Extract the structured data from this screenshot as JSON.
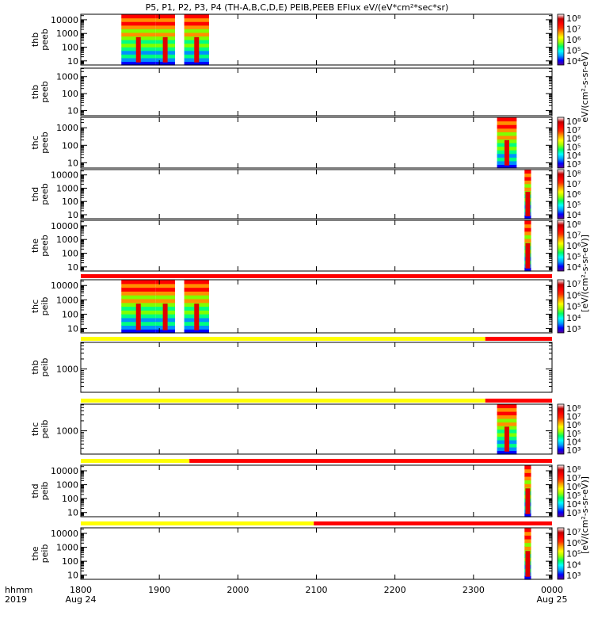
{
  "title": "P5, P1, P2, P3, P4 (TH-A,B,C,D,E) PEIB,PEEB EFlux eV/(eV*cm²*sec*sr)",
  "footer": {
    "row1_left": "hhmm",
    "row2_left": "2019"
  },
  "time_axis": {
    "ticks": [
      {
        "label": "1800",
        "sub": "Aug 24",
        "t": 0
      },
      {
        "label": "1900",
        "sub": "",
        "t": 60
      },
      {
        "label": "2000",
        "sub": "",
        "t": 120
      },
      {
        "label": "2100",
        "sub": "",
        "t": 180
      },
      {
        "label": "2200",
        "sub": "",
        "t": 240
      },
      {
        "label": "2300",
        "sub": "",
        "t": 300
      },
      {
        "label": "0000",
        "sub": "Aug 25",
        "t": 360
      }
    ],
    "range_minutes": [
      0,
      360
    ]
  },
  "colorbar_unit_labels": [
    "eV/(cm²-s-sr-eV)",
    "[eV/(cm²-s-sr-eV)]",
    "[eV/(cm²-s-sr-eV)]"
  ],
  "chart_data": {
    "type": "heatmap",
    "panels": [
      {
        "id": "thc-peeb-a",
        "ylabel": [
          "thb",
          "peeb"
        ],
        "yticks": [
          "10000",
          "1000",
          "100",
          "10"
        ],
        "ylog": [
          0.7,
          4.4
        ],
        "cb": [
          "10⁸",
          "10⁷",
          "10⁶",
          "10⁵",
          "10⁴"
        ],
        "blocks": [
          [
            31,
            57
          ],
          [
            57,
            72
          ],
          [
            79,
            98
          ]
        ],
        "bar": null
      },
      {
        "id": "thb-peeb",
        "ylabel": [
          "thb",
          "peeb"
        ],
        "yticks": [
          "1000",
          "100",
          "10"
        ],
        "ylog": [
          0.7,
          3.5
        ],
        "cb": [],
        "blocks": [],
        "bar": null
      },
      {
        "id": "thc-peeb",
        "ylabel": [
          "thc",
          "peeb"
        ],
        "yticks": [
          "1000",
          "100",
          "10"
        ],
        "ylog": [
          0.7,
          3.6
        ],
        "cb": [
          "10⁸",
          "10⁷",
          "10⁶",
          "10⁵",
          "10⁴",
          "10³"
        ],
        "blocks": [
          [
            318,
            333
          ]
        ],
        "bar": null
      },
      {
        "id": "thd-peeb",
        "ylabel": [
          "thd",
          "peeb"
        ],
        "yticks": [
          "10000",
          "1000",
          "100",
          "10"
        ],
        "ylog": [
          0.7,
          4.4
        ],
        "cb": [
          "10⁸",
          "10⁷",
          "10⁶",
          "10⁵",
          "10⁴"
        ],
        "blocks": [
          [
            339,
            344
          ]
        ],
        "bar": null
      },
      {
        "id": "the-peeb",
        "ylabel": [
          "the",
          "peeb"
        ],
        "yticks": [
          "10000",
          "1000",
          "100",
          "10"
        ],
        "ylog": [
          0.7,
          4.4
        ],
        "cb": [
          "10⁸",
          "10⁷",
          "10⁶",
          "10⁵",
          "10⁴"
        ],
        "blocks": [
          [
            339,
            344
          ]
        ],
        "bar": {
          "yellow_until": null
        }
      },
      {
        "id": "thc-peib-a",
        "ylabel": [
          "thc",
          "peib"
        ],
        "yticks": [
          "10000",
          "1000",
          "100",
          "10"
        ],
        "ylog": [
          0.7,
          4.4
        ],
        "cb": [
          "10⁷",
          "10⁶",
          "10⁵",
          "10⁴",
          "10³"
        ],
        "blocks": [
          [
            31,
            57
          ],
          [
            57,
            72
          ],
          [
            79,
            98
          ]
        ],
        "bar": {
          "yellow_until": 309
        }
      },
      {
        "id": "thb-peib",
        "ylabel": [
          "thb",
          "peib"
        ],
        "yticks": [
          "1000"
        ],
        "ylog": [
          2.3,
          3.8
        ],
        "cb": [],
        "blocks": [],
        "bar": {
          "yellow_until": 309
        }
      },
      {
        "id": "thc-peib",
        "ylabel": [
          "thc",
          "peib"
        ],
        "yticks": [
          "1000"
        ],
        "ylog": [
          2.3,
          3.8
        ],
        "cb": [
          "10⁸",
          "10⁷",
          "10⁶",
          "10⁵",
          "10⁴",
          "10³"
        ],
        "blocks": [
          [
            318,
            333
          ]
        ],
        "bar": {
          "yellow_until": 83
        }
      },
      {
        "id": "thd-peib",
        "ylabel": [
          "thd",
          "peib"
        ],
        "yticks": [
          "10000",
          "1000",
          "100",
          "10"
        ],
        "ylog": [
          0.7,
          4.4
        ],
        "cb": [
          "10⁸",
          "10⁷",
          "10⁶",
          "10⁵",
          "10⁴",
          "10³"
        ],
        "blocks": [
          [
            339,
            344
          ]
        ],
        "bar": {
          "yellow_until": 178
        }
      },
      {
        "id": "the-peib",
        "ylabel": [
          "the",
          "peib"
        ],
        "yticks": [
          "10000",
          "1000",
          "100",
          "10"
        ],
        "ylog": [
          0.7,
          4.4
        ],
        "cb": [
          "10⁷",
          "10⁶",
          "10⁵",
          "10⁴",
          "10³"
        ],
        "blocks": [
          [
            339,
            344
          ]
        ],
        "bar": null
      }
    ],
    "colors": {
      "bar_yellow": "#ffff00",
      "bar_red": "#ff0000"
    }
  }
}
